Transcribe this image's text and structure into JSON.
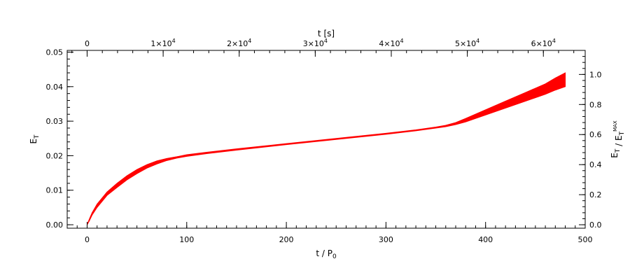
{
  "chart_data": {
    "type": "area",
    "color": "#ff0000",
    "grid": false,
    "x_bottom": {
      "label_main": "t / P",
      "label_sub": "0",
      "range": [
        -20,
        500
      ],
      "ticks": [
        0,
        100,
        200,
        300,
        400,
        500
      ],
      "tick_labels": [
        "0",
        "100",
        "200",
        "300",
        "400",
        "500"
      ],
      "minor_step": 10
    },
    "x_top": {
      "label": "t [s]",
      "range_seconds": [
        -2620,
        65500
      ],
      "ticks": [
        0,
        10000,
        20000,
        30000,
        40000,
        50000,
        60000
      ],
      "tick_labels": [
        "0",
        "1×10",
        "2×10",
        "3×10",
        "4×10",
        "5×10",
        "6×10"
      ],
      "tick_label_exponent": [
        "",
        "4",
        "4",
        "4",
        "4",
        "4",
        "4"
      ],
      "minor_step": 2000
    },
    "y_left": {
      "label_main": "E",
      "label_sub": "T",
      "range": [
        -0.001,
        0.0505
      ],
      "ticks": [
        0.0,
        0.01,
        0.02,
        0.03,
        0.04,
        0.05
      ],
      "tick_labels": [
        "0.00",
        "0.01",
        "0.02",
        "0.03",
        "0.04",
        "0.05"
      ],
      "minor_step": 0.002
    },
    "y_right": {
      "label_main": "E",
      "label_sub": "T",
      "label_sub_sup": "MAX",
      "range": [
        -0.023,
        1.16
      ],
      "ticks": [
        0.0,
        0.2,
        0.4,
        0.6,
        0.8,
        1.0
      ],
      "tick_labels": [
        "0.0",
        "0.2",
        "0.4",
        "0.6",
        "0.8",
        "1.0"
      ],
      "minor_step": 0.04
    },
    "series": [
      {
        "x": [
          0,
          2,
          5,
          10,
          20,
          30,
          40,
          50,
          60,
          70,
          80,
          90,
          100,
          120,
          150,
          200,
          250,
          300,
          330,
          350,
          360,
          370,
          380,
          400,
          420,
          440,
          460,
          470,
          480
        ],
        "upper": [
          0.0,
          0.0015,
          0.0035,
          0.006,
          0.0095,
          0.012,
          0.0142,
          0.016,
          0.0174,
          0.0185,
          0.0192,
          0.0197,
          0.0203,
          0.021,
          0.022,
          0.0235,
          0.025,
          0.0265,
          0.0275,
          0.0283,
          0.0288,
          0.0296,
          0.0308,
          0.0333,
          0.0358,
          0.0383,
          0.0408,
          0.0425,
          0.044
        ],
        "lower": [
          0.0,
          0.001,
          0.0028,
          0.005,
          0.0085,
          0.0108,
          0.013,
          0.0148,
          0.0164,
          0.0176,
          0.0186,
          0.0193,
          0.0198,
          0.0206,
          0.0216,
          0.0232,
          0.0247,
          0.0262,
          0.0272,
          0.028,
          0.0284,
          0.029,
          0.0298,
          0.0318,
          0.0338,
          0.0358,
          0.0378,
          0.039,
          0.04
        ]
      }
    ]
  }
}
